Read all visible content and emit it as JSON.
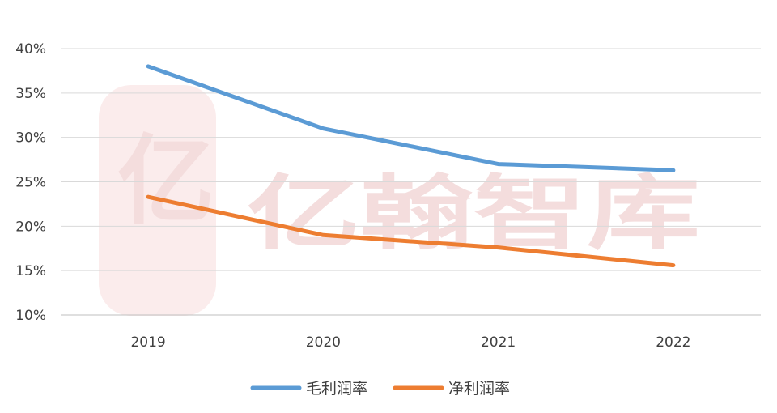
{
  "watermark": {
    "text": "亿翰智库",
    "logo_char": "亿",
    "color": "#f4dddd"
  },
  "chart_data": {
    "type": "line",
    "categories": [
      "2019",
      "2020",
      "2021",
      "2022"
    ],
    "y_tick_labels": [
      "40%",
      "35%",
      "30%",
      "25%",
      "20%",
      "15%",
      "10%"
    ],
    "ylim": [
      10,
      40
    ],
    "y_unit": "%",
    "grid": true,
    "legend_position": "bottom",
    "series": [
      {
        "name": "毛利润率",
        "values": [
          38.0,
          31.0,
          27.0,
          26.3
        ],
        "color": "#5b9bd5"
      },
      {
        "name": "净利润率",
        "values": [
          23.3,
          19.0,
          17.6,
          15.6
        ],
        "color": "#ed7d31"
      }
    ]
  }
}
